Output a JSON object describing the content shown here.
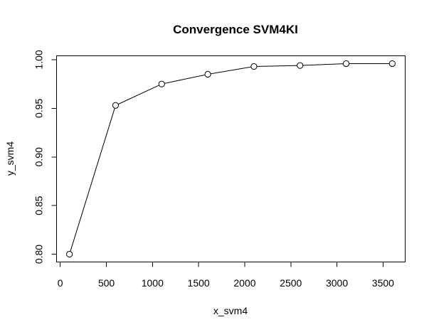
{
  "chart_data": {
    "type": "line",
    "title": "Convergence SVM4KI",
    "xlabel": "x_svm4",
    "ylabel": "y_svm4",
    "x": [
      100,
      600,
      1100,
      1600,
      2100,
      2600,
      3100,
      3600
    ],
    "series": [
      {
        "values": [
          0.8,
          0.953,
          0.975,
          0.985,
          0.993,
          0.994,
          0.996,
          0.996
        ]
      }
    ],
    "xlim": [
      -40,
      3740
    ],
    "ylim": [
      0.792,
      1.004
    ],
    "x_ticks": [
      0,
      500,
      1000,
      1500,
      2000,
      2500,
      3000,
      3500
    ],
    "x_tick_labels": [
      "0",
      "500",
      "1000",
      "1500",
      "2000",
      "2500",
      "3000",
      "3500"
    ],
    "y_ticks": [
      0.8,
      0.85,
      0.9,
      0.95,
      1.0
    ],
    "y_tick_labels": [
      "0.80",
      "0.85",
      "0.90",
      "0.95",
      "1.00"
    ],
    "grid": false,
    "marker": "open-circle",
    "colors": {
      "line": "#000000",
      "marker_fill": "#ffffff",
      "background": "#ffffff"
    }
  }
}
